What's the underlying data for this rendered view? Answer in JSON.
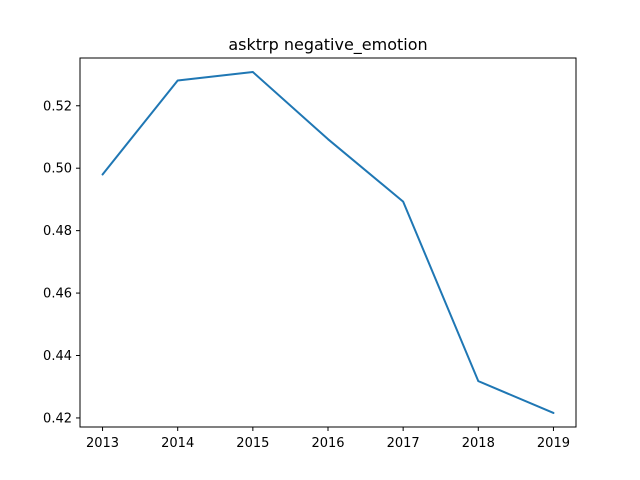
{
  "chart_data": {
    "type": "line",
    "title": "asktrp negative_emotion",
    "xlabel": "",
    "ylabel": "",
    "x": [
      2013,
      2014,
      2015,
      2016,
      2017,
      2018,
      2019
    ],
    "series": [
      {
        "values": [
          0.498,
          0.5281,
          0.5308,
          0.5093,
          0.4893,
          0.4318,
          0.4216
        ],
        "color": "#1f77b4"
      }
    ],
    "xticks": [
      "2013",
      "2014",
      "2015",
      "2016",
      "2017",
      "2018",
      "2019"
    ],
    "yticks": [
      "0.42",
      "0.44",
      "0.46",
      "0.48",
      "0.50",
      "0.52"
    ],
    "xlim": [
      2012.7,
      2019.3
    ],
    "ylim": [
      0.4171,
      0.5353
    ],
    "grid": false,
    "legend": "none"
  }
}
